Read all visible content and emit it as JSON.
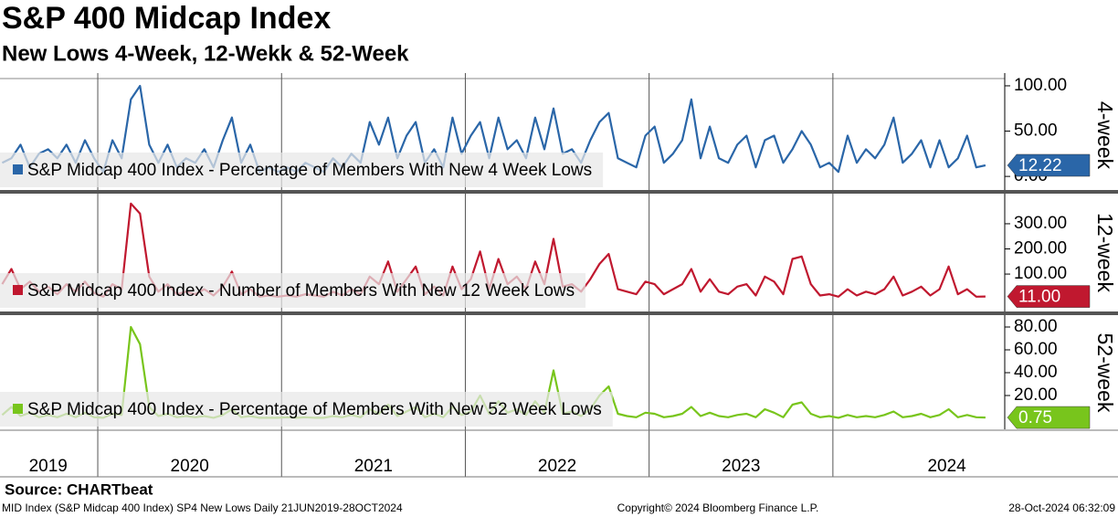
{
  "chart_data": {
    "type": "line",
    "title": "S&P 400 Midcap Index",
    "subtitle": "New Lows 4-Week, 12-Wekk & 52-Week",
    "source": "Source: CHARTbeat",
    "footer_left": "MID Index (S&P Midcap 400 Index) SP4 New Lows  Daily 21JUN2019-28OCT2024",
    "footer_center": "Copyright© 2024 Bloomberg Finance L.P.",
    "footer_right": "28-Oct-2024 06:32:09",
    "xlim": [
      2019.468,
      2024.935
    ],
    "xticks": [
      {
        "value": 2019.73,
        "label": "2019"
      },
      {
        "value": 2020.5,
        "label": "2020"
      },
      {
        "value": 2021.5,
        "label": "2021"
      },
      {
        "value": 2022.5,
        "label": "2022"
      },
      {
        "value": 2023.5,
        "label": "2023"
      },
      {
        "value": 2024.62,
        "label": "2024"
      }
    ],
    "xgrid": [
      2020,
      2021,
      2022,
      2023,
      2024
    ],
    "x": [
      2019.48,
      2019.53,
      2019.58,
      2019.63,
      2019.68,
      2019.73,
      2019.78,
      2019.83,
      2019.88,
      2019.93,
      2019.98,
      2020.03,
      2020.08,
      2020.13,
      2020.18,
      2020.23,
      2020.28,
      2020.33,
      2020.38,
      2020.43,
      2020.48,
      2020.53,
      2020.58,
      2020.63,
      2020.68,
      2020.73,
      2020.78,
      2020.83,
      2020.88,
      2020.93,
      2020.98,
      2021.03,
      2021.08,
      2021.13,
      2021.18,
      2021.23,
      2021.28,
      2021.33,
      2021.38,
      2021.43,
      2021.48,
      2021.53,
      2021.58,
      2021.63,
      2021.68,
      2021.73,
      2021.78,
      2021.83,
      2021.88,
      2021.93,
      2021.98,
      2022.03,
      2022.08,
      2022.13,
      2022.18,
      2022.23,
      2022.28,
      2022.33,
      2022.38,
      2022.43,
      2022.48,
      2022.53,
      2022.58,
      2022.63,
      2022.68,
      2022.73,
      2022.78,
      2022.83,
      2022.88,
      2022.93,
      2022.98,
      2023.03,
      2023.08,
      2023.13,
      2023.18,
      2023.23,
      2023.28,
      2023.33,
      2023.38,
      2023.43,
      2023.48,
      2023.53,
      2023.58,
      2023.63,
      2023.68,
      2023.73,
      2023.78,
      2023.83,
      2023.88,
      2023.93,
      2023.98,
      2024.03,
      2024.08,
      2024.13,
      2024.18,
      2024.23,
      2024.28,
      2024.33,
      2024.38,
      2024.43,
      2024.48,
      2024.53,
      2024.58,
      2024.63,
      2024.68,
      2024.73,
      2024.78,
      2024.83
    ],
    "panels": [
      {
        "ylabel": "4-week",
        "ylim": [
          -15,
          106
        ],
        "yticks": [
          {
            "value": 0,
            "label": "0.00"
          },
          {
            "value": 50,
            "label": "50.00"
          },
          {
            "value": 100,
            "label": "100.00"
          }
        ],
        "current": {
          "value": 12.22,
          "label": "12.22"
        },
        "series": [
          {
            "name": "S&P Midcap 400 Index - Percentage of Members With New 4 Week Lows",
            "color": "#2a66a8",
            "values": [
              15,
              20,
              35,
              10,
              25,
              30,
              20,
              35,
              15,
              40,
              20,
              5,
              40,
              20,
              85,
              100,
              35,
              15,
              35,
              10,
              20,
              15,
              30,
              10,
              40,
              65,
              15,
              35,
              5,
              10,
              5,
              10,
              5,
              15,
              10,
              5,
              20,
              10,
              25,
              15,
              60,
              35,
              65,
              20,
              45,
              60,
              15,
              30,
              10,
              65,
              25,
              45,
              60,
              20,
              65,
              30,
              40,
              20,
              65,
              30,
              75,
              25,
              30,
              15,
              40,
              60,
              70,
              20,
              15,
              10,
              45,
              55,
              15,
              25,
              40,
              85,
              20,
              55,
              20,
              15,
              35,
              45,
              10,
              40,
              45,
              15,
              30,
              50,
              35,
              10,
              15,
              5,
              45,
              15,
              30,
              20,
              35,
              65,
              15,
              25,
              40,
              10,
              40,
              10,
              20,
              45,
              10,
              12.22
            ]
          }
        ]
      },
      {
        "ylabel": "12-week",
        "ylim": [
          -45,
          416
        ],
        "yticks": [
          {
            "value": 100,
            "label": "100.00"
          },
          {
            "value": 200,
            "label": "200.00"
          },
          {
            "value": 300,
            "label": "300.00"
          }
        ],
        "current": {
          "value": 11,
          "label": "11.00"
        },
        "series": [
          {
            "name": "S&P Midcap 400 Index - Number of Members With New 12 Week Lows",
            "color": "#c0182f",
            "values": [
              60,
              120,
              40,
              70,
              30,
              50,
              20,
              60,
              30,
              70,
              25,
              10,
              60,
              40,
              380,
              340,
              90,
              30,
              60,
              20,
              30,
              20,
              40,
              15,
              50,
              110,
              20,
              40,
              10,
              15,
              10,
              15,
              10,
              20,
              15,
              10,
              30,
              15,
              40,
              20,
              90,
              60,
              150,
              30,
              80,
              130,
              20,
              50,
              15,
              130,
              40,
              80,
              190,
              40,
              160,
              60,
              90,
              40,
              150,
              60,
              240,
              50,
              60,
              30,
              80,
              140,
              180,
              40,
              30,
              20,
              70,
              60,
              20,
              40,
              60,
              120,
              30,
              80,
              30,
              20,
              50,
              60,
              15,
              90,
              70,
              20,
              160,
              170,
              60,
              15,
              20,
              10,
              40,
              15,
              30,
              20,
              40,
              90,
              15,
              30,
              50,
              15,
              40,
              130,
              20,
              40,
              10,
              11
            ]
          }
        ]
      },
      {
        "ylabel": "52-week",
        "ylim": [
          -9.6,
          89.6
        ],
        "yticks": [
          {
            "value": 20,
            "label": "20.00"
          },
          {
            "value": 40,
            "label": "40.00"
          },
          {
            "value": 60,
            "label": "60.00"
          },
          {
            "value": 80,
            "label": "80.00"
          }
        ],
        "current": {
          "value": 0.75,
          "label": "0.75"
        },
        "series": [
          {
            "name": "S&P Midcap 400 Index - Percentage of Members With New 52 Week Lows",
            "color": "#78c51c",
            "values": [
              3,
              10,
              2,
              5,
              1,
              3,
              1,
              4,
              1,
              5,
              1,
              0.5,
              4,
              3,
              80,
              65,
              10,
              2,
              4,
              1,
              2,
              1,
              2,
              0.5,
              3,
              8,
              1,
              2,
              0.5,
              0.5,
              0.5,
              1,
              0.5,
              1,
              0.5,
              0.5,
              2,
              1,
              3,
              1,
              8,
              4,
              12,
              2,
              6,
              10,
              1,
              4,
              1,
              10,
              3,
              6,
              20,
              4,
              15,
              5,
              8,
              3,
              15,
              5,
              42,
              4,
              6,
              2,
              8,
              20,
              28,
              4,
              2,
              1,
              5,
              4,
              1,
              2,
              4,
              10,
              2,
              5,
              2,
              1,
              3,
              4,
              1,
              8,
              5,
              1,
              12,
              14,
              4,
              1,
              2,
              0.5,
              3,
              1,
              2,
              1,
              3,
              6,
              1,
              2,
              4,
              1,
              3,
              8,
              1,
              3,
              1,
              0.75
            ]
          }
        ]
      }
    ]
  }
}
